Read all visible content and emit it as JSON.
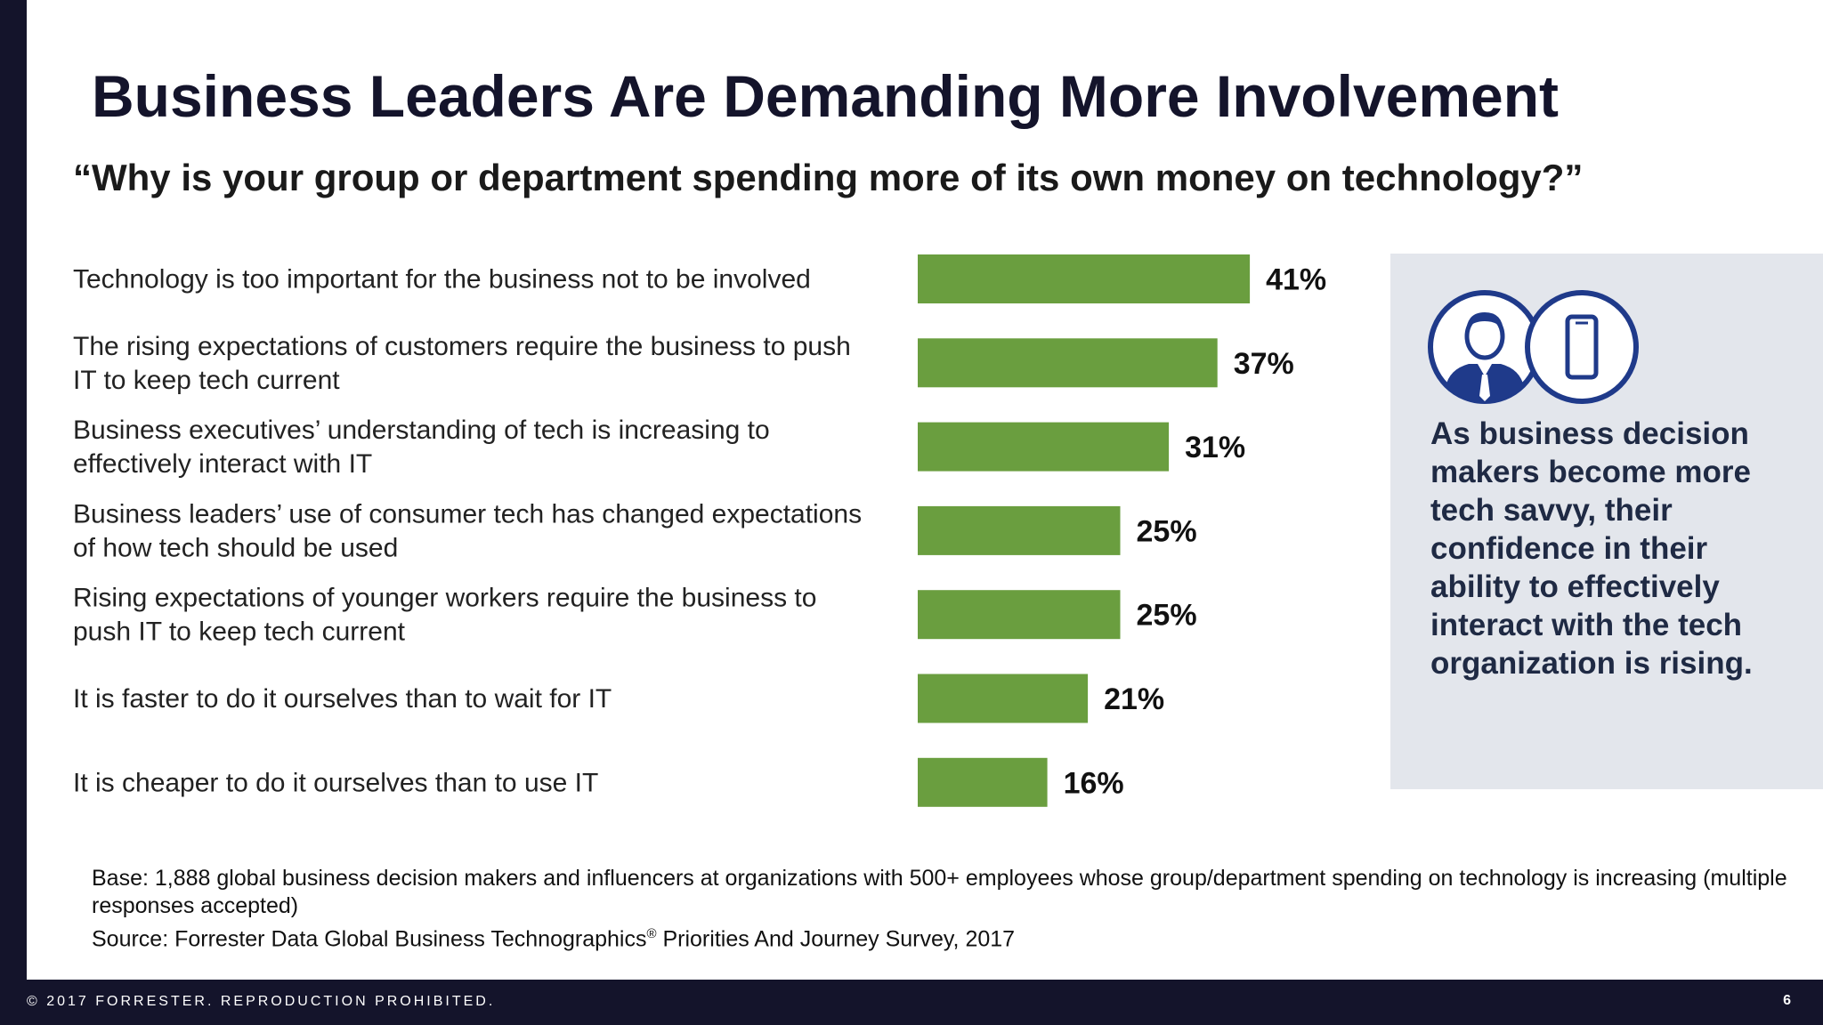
{
  "title": "Business Leaders Are Demanding More Involvement",
  "question": "“Why is your group or department spending more of its own money on technology?”",
  "chart_data": {
    "type": "bar",
    "orientation": "horizontal",
    "categories": [
      [
        "Technology is too important for the business not to be involved"
      ],
      [
        "The rising expectations of customers require the business to push",
        "IT to keep tech current"
      ],
      [
        "Business executives’ understanding of tech is increasing to",
        "effectively interact with IT"
      ],
      [
        "Business leaders’ use of consumer tech has changed expectations",
        "of how tech should be used"
      ],
      [
        "Rising expectations of younger workers require the business to",
        "push IT to keep tech current"
      ],
      [
        "It is faster to do it ourselves than to wait for IT"
      ],
      [
        "It is cheaper to do it ourselves than to use IT"
      ]
    ],
    "values": [
      41,
      37,
      31,
      25,
      25,
      21,
      16
    ],
    "value_labels": [
      "41%",
      "37%",
      "31%",
      "25%",
      "25%",
      "21%",
      "16%"
    ],
    "bar_color": "#6a9e3f",
    "grid": false
  },
  "callout": {
    "icons": [
      "business-person-icon",
      "smartphone-icon"
    ],
    "icon_color": "#1f3a8a",
    "text": "As business decision makers become more tech savvy, their confidence in their ability to effectively interact with the tech organization is rising."
  },
  "base_note": {
    "line1": "Base: 1,888 global business decision makers and influencers at organizations with 500+ employees whose group/department spending on technology is increasing (multiple responses accepted)",
    "source_prefix": "Source: Forrester Data Global Business Technographics",
    "source_mark": "®",
    "source_suffix": " Priorities And Journey Survey, 2017"
  },
  "footer": {
    "copyright": "© 2017 FORRESTER. REPRODUCTION PROHIBITED.",
    "page_number": "6"
  }
}
